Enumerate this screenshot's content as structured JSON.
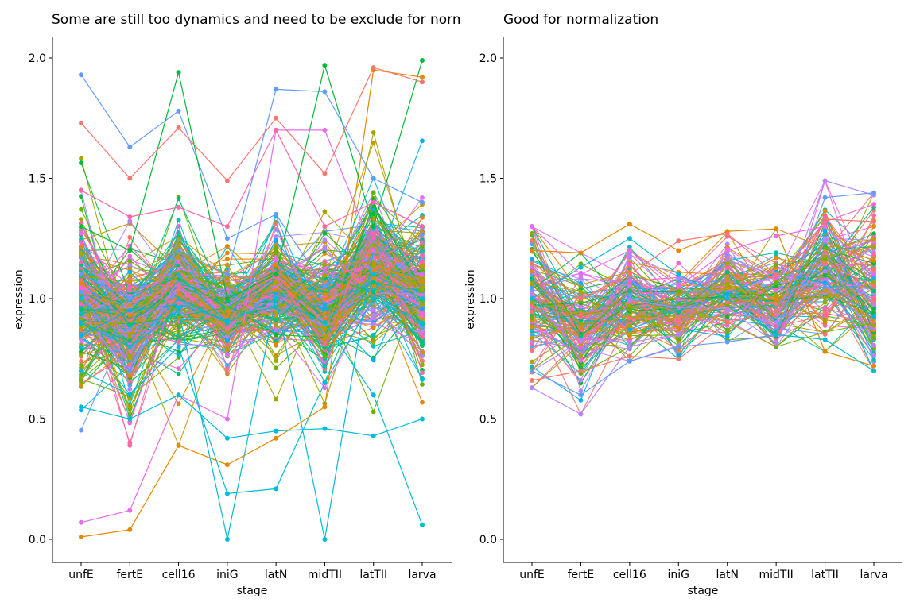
{
  "colors": [
    "#F8766D",
    "#E58700",
    "#C99800",
    "#A3A500",
    "#6BB100",
    "#00BA38",
    "#00BF7D",
    "#00C0AF",
    "#00BCD8",
    "#00B0F6",
    "#619CFF",
    "#B983FF",
    "#E76BF3",
    "#FD61D1",
    "#FF67A4"
  ],
  "chart_data": [
    {
      "type": "line",
      "title": "Some are still too dynamics and need to be exclude for normalization",
      "xlabel": "stage",
      "ylabel": "expression",
      "categories": [
        "unfE",
        "fertE",
        "cell16",
        "iniG",
        "latN",
        "midTII",
        "latTII",
        "larva"
      ],
      "ylim": [
        -0.09,
        2.09
      ],
      "yticks": [
        0.0,
        0.5,
        1.0,
        1.5,
        2.0
      ],
      "ytick_labels": [
        "0.0",
        "0.5",
        "1.0",
        "1.5",
        "2.0"
      ],
      "grid": false,
      "legend": "none",
      "series_count": 300,
      "stage_mean": [
        1.0,
        0.9,
        1.05,
        0.93,
        1.05,
        0.95,
        1.12,
        1.03
      ],
      "stage_spread": [
        0.13,
        0.12,
        0.1,
        0.07,
        0.09,
        0.1,
        0.11,
        0.12
      ],
      "stage_min": [
        0.0,
        0.04,
        0.39,
        0.0,
        0.21,
        0.0,
        0.43,
        0.06
      ],
      "stage_max": [
        1.93,
        1.63,
        1.94,
        1.56,
        1.87,
        1.98,
        1.99,
        1.99
      ],
      "highlighted_series": [
        {
          "color": "#619CFF",
          "values": [
            1.93,
            1.63,
            1.78,
            1.25,
            1.35,
            1.05,
            1.4,
            1.3
          ]
        },
        {
          "color": "#00BCD8",
          "values": [
            1.0,
            0.8,
            0.95,
            0.0,
            1.0,
            0.9,
            1.1,
            1.0
          ]
        },
        {
          "color": "#00BCD8",
          "values": [
            0.7,
            0.6,
            0.8,
            0.19,
            0.21,
            0.65,
            1.0,
            0.9
          ]
        },
        {
          "color": "#00BCD8",
          "values": [
            0.9,
            0.8,
            1.0,
            0.9,
            1.0,
            0.0,
            1.2,
            1.1
          ]
        },
        {
          "color": "#00BCD8",
          "values": [
            1.1,
            1.0,
            1.1,
            0.9,
            1.0,
            0.9,
            0.6,
            0.06
          ]
        },
        {
          "color": "#E58700",
          "values": [
            0.01,
            0.04,
            0.39,
            0.31,
            0.42,
            0.55,
            1.95,
            1.92
          ]
        },
        {
          "color": "#00BA38",
          "values": [
            1.3,
            1.2,
            1.94,
            1.0,
            1.1,
            1.97,
            1.3,
            1.99
          ]
        },
        {
          "color": "#619CFF",
          "values": [
            1.1,
            1.0,
            1.2,
            1.1,
            1.87,
            1.86,
            1.5,
            1.4
          ]
        },
        {
          "color": "#E76BF3",
          "values": [
            0.07,
            0.12,
            0.6,
            0.5,
            1.7,
            1.7,
            1.2,
            1.1
          ]
        },
        {
          "color": "#FF67A4",
          "values": [
            1.45,
            1.34,
            1.38,
            1.3,
            1.7,
            1.3,
            1.4,
            1.3
          ]
        },
        {
          "color": "#F8766D",
          "values": [
            1.73,
            1.5,
            1.71,
            1.49,
            1.75,
            1.52,
            1.96,
            1.9
          ]
        },
        {
          "color": "#00BCD8",
          "values": [
            0.55,
            0.5,
            0.6,
            0.42,
            0.45,
            0.46,
            0.43,
            0.5
          ]
        }
      ]
    },
    {
      "type": "line",
      "title": "Good for normalization",
      "xlabel": "stage",
      "ylabel": "expression",
      "categories": [
        "unfE",
        "fertE",
        "cell16",
        "iniG",
        "latN",
        "midTII",
        "latTII",
        "larva"
      ],
      "ylim": [
        -0.09,
        2.09
      ],
      "yticks": [
        0.0,
        0.5,
        1.0,
        1.5,
        2.0
      ],
      "ytick_labels": [
        "0.0",
        "0.5",
        "1.0",
        "1.5",
        "2.0"
      ],
      "grid": false,
      "legend": "none",
      "series_count": 150,
      "stage_mean": [
        1.0,
        0.88,
        0.98,
        0.95,
        1.05,
        0.97,
        1.12,
        1.02
      ],
      "stage_spread": [
        0.13,
        0.1,
        0.09,
        0.07,
        0.08,
        0.08,
        0.12,
        0.14
      ],
      "stage_min": [
        0.63,
        0.52,
        0.74,
        0.75,
        0.82,
        0.8,
        0.78,
        0.7
      ],
      "stage_max": [
        1.3,
        1.19,
        1.31,
        1.24,
        1.28,
        1.29,
        1.49,
        1.44
      ],
      "highlighted_series": [
        {
          "color": "#B983FF",
          "values": [
            0.63,
            0.52,
            0.8,
            0.85,
            0.95,
            0.9,
            1.49,
            1.43
          ]
        },
        {
          "color": "#E58700",
          "values": [
            1.2,
            1.19,
            1.31,
            1.2,
            1.28,
            1.29,
            0.78,
            0.72
          ]
        },
        {
          "color": "#619CFF",
          "values": [
            0.7,
            0.6,
            0.74,
            0.8,
            0.82,
            0.85,
            1.42,
            1.44
          ]
        },
        {
          "color": "#F8766D",
          "values": [
            0.66,
            0.7,
            0.76,
            0.75,
            0.9,
            0.95,
            1.33,
            1.32
          ]
        },
        {
          "color": "#00BCD8",
          "values": [
            1.0,
            1.13,
            1.25,
            1.1,
            1.0,
            0.85,
            0.83,
            0.7
          ]
        },
        {
          "color": "#E76BF3",
          "values": [
            1.3,
            1.1,
            1.2,
            1.05,
            1.2,
            1.26,
            1.3,
            1.1
          ]
        },
        {
          "color": "#F8766D",
          "values": [
            1.15,
            1.0,
            1.1,
            1.24,
            1.27,
            1.1,
            1.15,
            1.05
          ]
        }
      ]
    }
  ]
}
